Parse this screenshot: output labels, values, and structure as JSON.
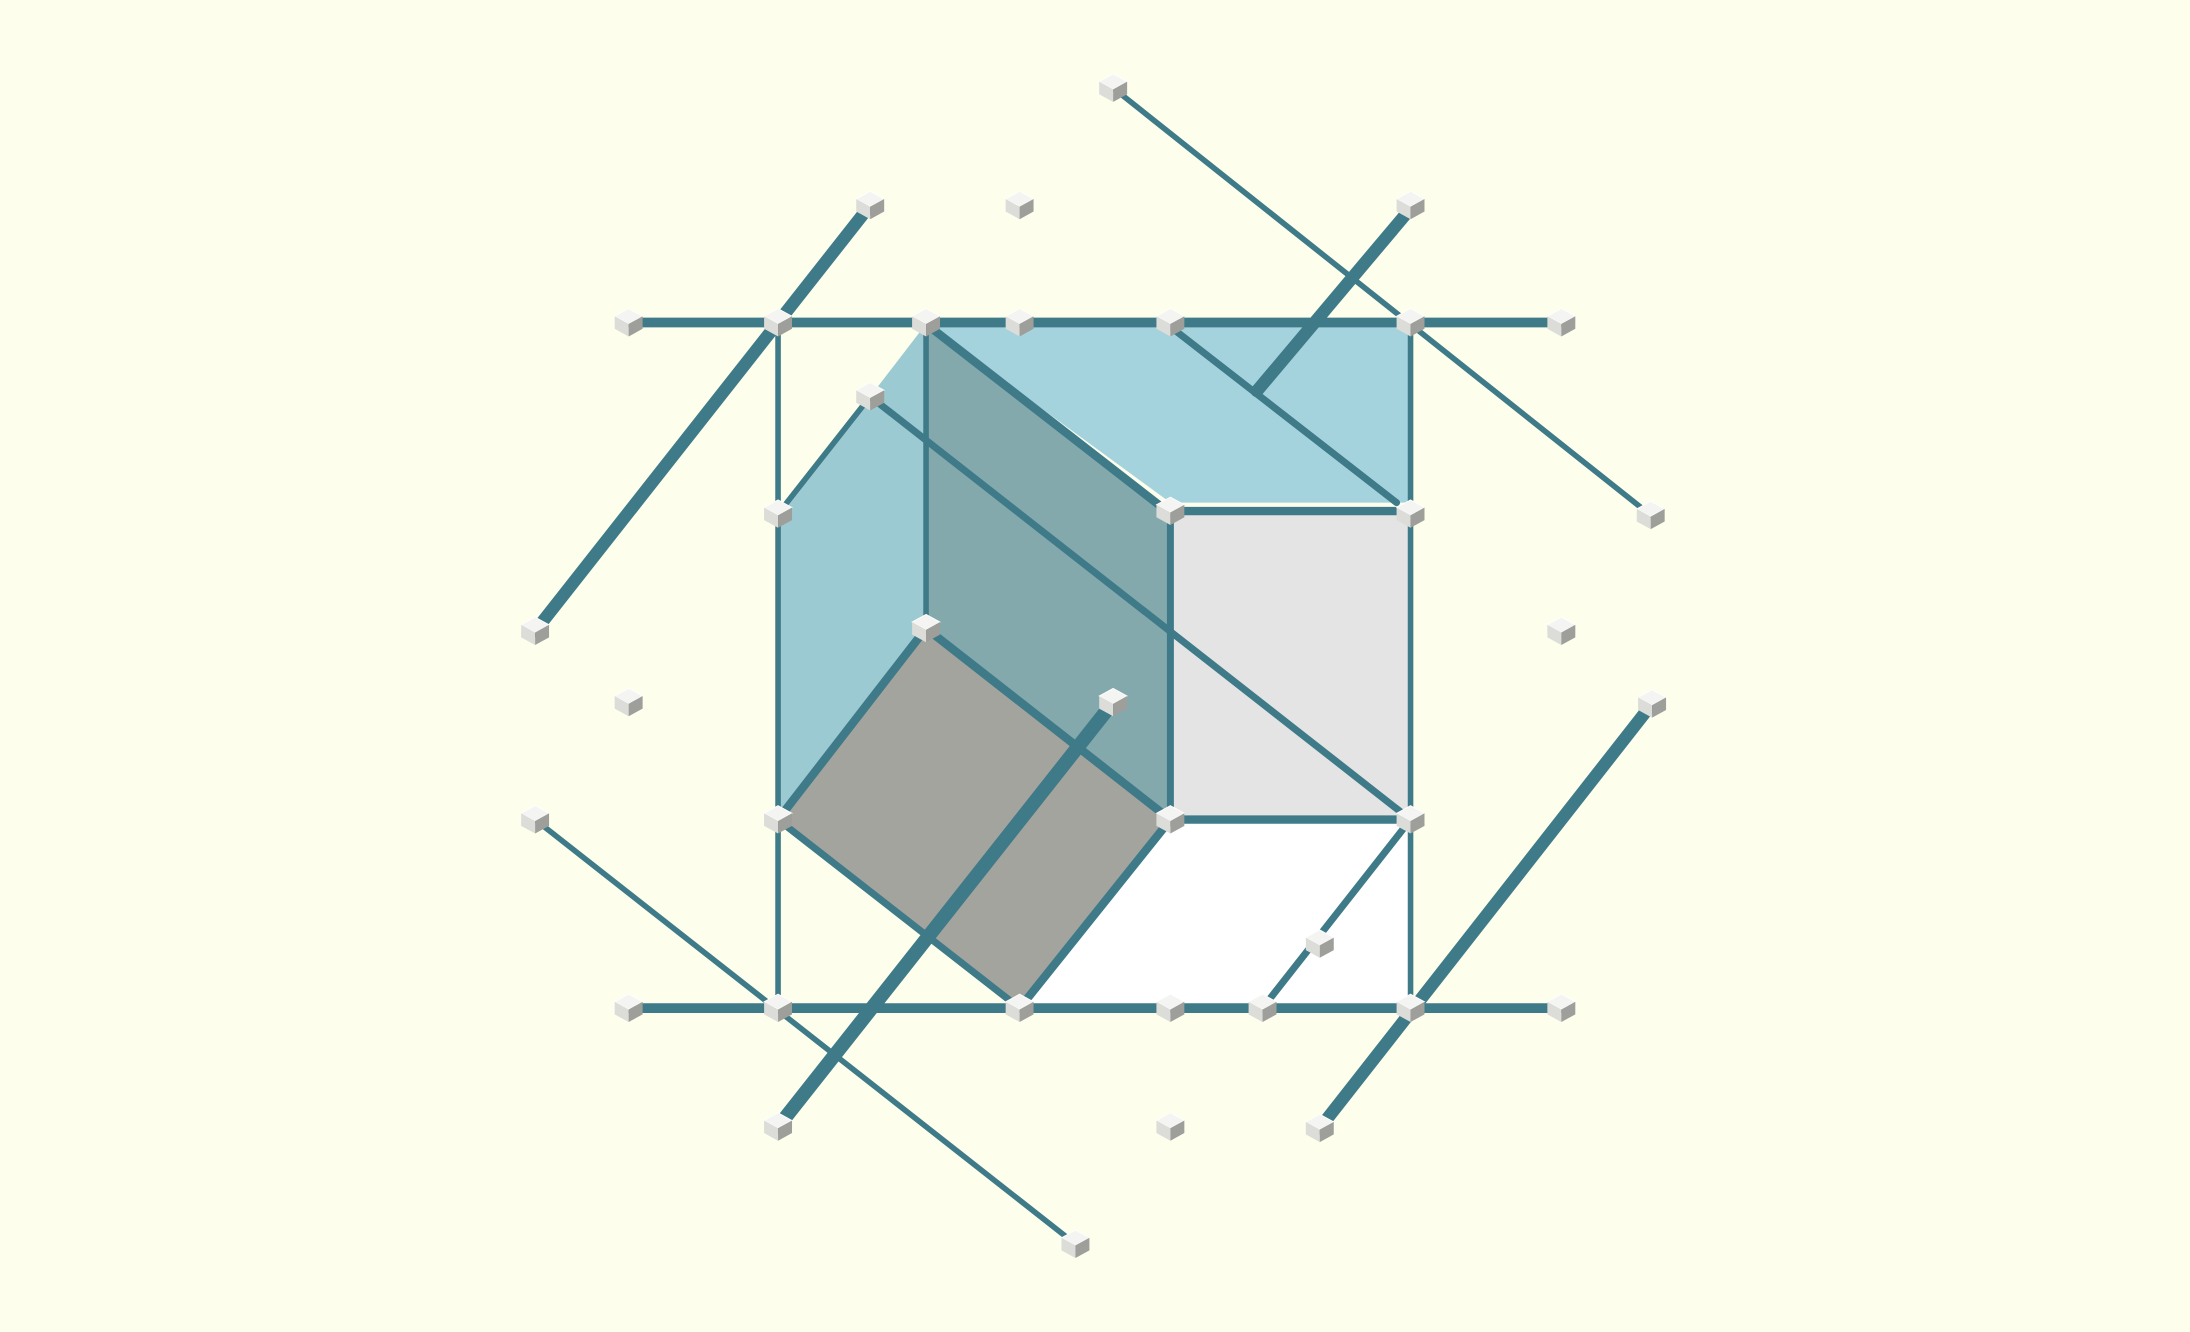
{
  "diagram": {
    "kind": "3d-lattice-render",
    "colors": {
      "background": "#fdfeec",
      "rod": "#3f7a88",
      "rod_dark": "#346876",
      "face_top": "#a4d3de",
      "face_left": "#9ccad2",
      "face_inner": "#84a9ad",
      "face_bottom": "#a4a49f",
      "face_right": "#e4e4e4",
      "face_lower": "#ffffff",
      "node_light": "#f4f4f2",
      "node_mid": "#dcdcd8",
      "node_dark": "#9e9e9a"
    },
    "node_icon": "bevelled-cube-node-icon"
  }
}
